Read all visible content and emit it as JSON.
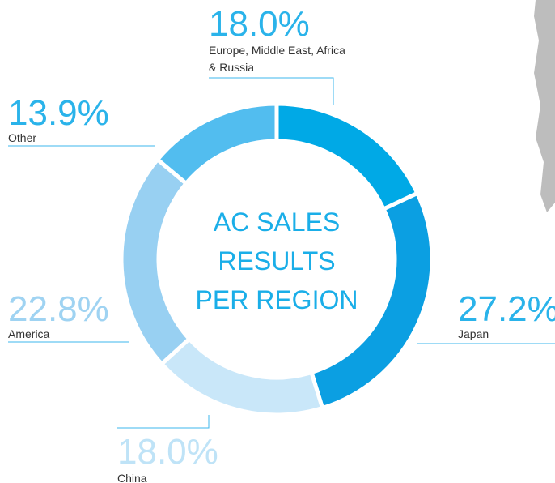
{
  "chart_data": {
    "type": "donut",
    "title": "AC SALES RESULTS PER REGION",
    "categories": [
      "Europe, Middle East, Africa & Russia",
      "Japan",
      "China",
      "America",
      "Other"
    ],
    "values": [
      18.0,
      27.2,
      18.0,
      22.8,
      13.9
    ],
    "value_labels": [
      "18.0%",
      "27.2%",
      "18.0%",
      "22.8%",
      "13.9%"
    ],
    "colors": [
      "#00a9e6",
      "#0b9fe2",
      "#c9e7f9",
      "#98d0f2",
      "#52bdef"
    ]
  }
}
